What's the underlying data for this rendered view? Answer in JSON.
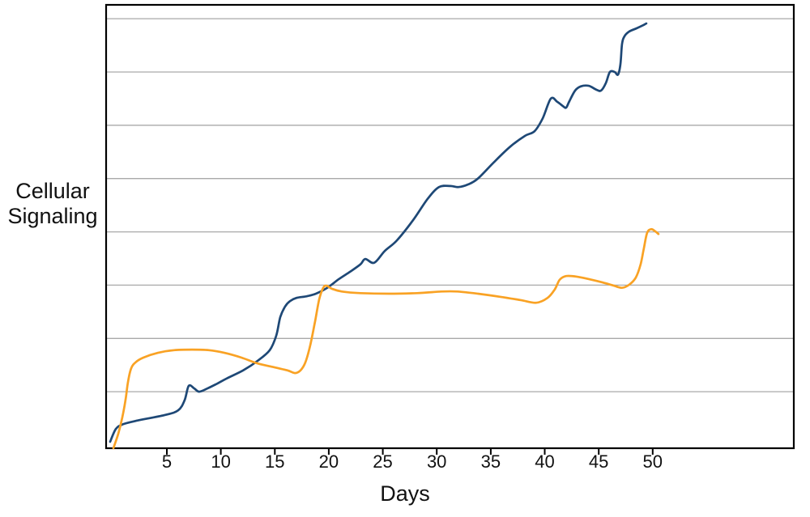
{
  "labels": {
    "ylabel_line1": "Cellular",
    "ylabel_line2": "Signaling",
    "xlabel": "Days"
  },
  "chart_data": {
    "type": "line",
    "title": "",
    "xlabel": "Days",
    "ylabel": "Cellular Signaling",
    "legend": "none",
    "background_color": "#ffffff",
    "frame_color": "#000000",
    "x_axis": {
      "label": "Days",
      "ticks": [
        5,
        10,
        15,
        20,
        25,
        30,
        35,
        40,
        45,
        50
      ],
      "range": [
        -0.6,
        63.1
      ]
    },
    "y_axis": {
      "label": "Cellular Signaling",
      "tick_labels_visible": false,
      "gridline_values": [
        1,
        2,
        3,
        4,
        5,
        6,
        7,
        8
      ],
      "gridline_color": "#a9a9a9",
      "range_units": [
        -0.06,
        8.32
      ],
      "note": "no numeric y scale shown; values estimated in gridline units above baseline"
    },
    "series": [
      {
        "id": "dark-blue-line",
        "color": "#1E4876",
        "points": [
          [
            -0.25,
            0.06
          ],
          [
            0.28,
            0.3
          ],
          [
            0.95,
            0.39
          ],
          [
            2.3,
            0.46
          ],
          [
            4.78,
            0.56
          ],
          [
            6.05,
            0.65
          ],
          [
            6.65,
            0.84
          ],
          [
            7.03,
            1.11
          ],
          [
            7.55,
            1.06
          ],
          [
            8.0,
            1.0
          ],
          [
            8.75,
            1.06
          ],
          [
            9.65,
            1.15
          ],
          [
            10.56,
            1.25
          ],
          [
            12.06,
            1.4
          ],
          [
            13.41,
            1.58
          ],
          [
            14.53,
            1.78
          ],
          [
            15.13,
            2.05
          ],
          [
            15.51,
            2.4
          ],
          [
            15.96,
            2.6
          ],
          [
            16.41,
            2.7
          ],
          [
            17.01,
            2.76
          ],
          [
            17.91,
            2.79
          ],
          [
            18.81,
            2.84
          ],
          [
            19.86,
            2.95
          ],
          [
            20.91,
            3.11
          ],
          [
            21.96,
            3.25
          ],
          [
            22.93,
            3.39
          ],
          [
            23.38,
            3.49
          ],
          [
            24.21,
            3.42
          ],
          [
            25.18,
            3.64
          ],
          [
            26.31,
            3.84
          ],
          [
            27.81,
            4.22
          ],
          [
            29.16,
            4.62
          ],
          [
            30.21,
            4.84
          ],
          [
            31.26,
            4.86
          ],
          [
            32.01,
            4.84
          ],
          [
            32.91,
            4.89
          ],
          [
            33.81,
            5.0
          ],
          [
            35.31,
            5.31
          ],
          [
            36.81,
            5.6
          ],
          [
            38.16,
            5.8
          ],
          [
            39.06,
            5.89
          ],
          [
            39.81,
            6.13
          ],
          [
            40.56,
            6.5
          ],
          [
            41.16,
            6.44
          ],
          [
            41.68,
            6.36
          ],
          [
            41.98,
            6.33
          ],
          [
            42.28,
            6.45
          ],
          [
            42.81,
            6.65
          ],
          [
            43.33,
            6.73
          ],
          [
            44.08,
            6.74
          ],
          [
            44.76,
            6.67
          ],
          [
            45.21,
            6.65
          ],
          [
            45.66,
            6.79
          ],
          [
            46.03,
            7.0
          ],
          [
            46.48,
            7.0
          ],
          [
            46.78,
            6.95
          ],
          [
            47.01,
            7.14
          ],
          [
            47.16,
            7.52
          ],
          [
            47.38,
            7.67
          ],
          [
            47.83,
            7.76
          ],
          [
            48.51,
            7.82
          ],
          [
            49.03,
            7.87
          ],
          [
            49.41,
            7.91
          ]
        ]
      },
      {
        "id": "orange-line",
        "color": "#F9A224",
        "points": [
          [
            0.05,
            -0.06
          ],
          [
            0.5,
            0.21
          ],
          [
            0.88,
            0.52
          ],
          [
            1.18,
            0.85
          ],
          [
            1.4,
            1.18
          ],
          [
            1.7,
            1.44
          ],
          [
            2.15,
            1.56
          ],
          [
            2.83,
            1.64
          ],
          [
            4.18,
            1.73
          ],
          [
            5.68,
            1.78
          ],
          [
            7.33,
            1.79
          ],
          [
            8.9,
            1.78
          ],
          [
            10.33,
            1.73
          ],
          [
            11.91,
            1.64
          ],
          [
            13.41,
            1.53
          ],
          [
            14.91,
            1.46
          ],
          [
            16.18,
            1.4
          ],
          [
            16.86,
            1.35
          ],
          [
            17.38,
            1.4
          ],
          [
            17.83,
            1.55
          ],
          [
            18.28,
            1.87
          ],
          [
            18.73,
            2.32
          ],
          [
            19.11,
            2.73
          ],
          [
            19.48,
            2.95
          ],
          [
            19.78,
            2.99
          ],
          [
            20.31,
            2.93
          ],
          [
            21.21,
            2.88
          ],
          [
            22.93,
            2.85
          ],
          [
            25.56,
            2.84
          ],
          [
            28.18,
            2.85
          ],
          [
            30.43,
            2.88
          ],
          [
            31.93,
            2.88
          ],
          [
            33.81,
            2.84
          ],
          [
            35.91,
            2.78
          ],
          [
            37.78,
            2.72
          ],
          [
            39.21,
            2.67
          ],
          [
            40.26,
            2.76
          ],
          [
            40.93,
            2.92
          ],
          [
            41.38,
            3.1
          ],
          [
            41.98,
            3.17
          ],
          [
            42.96,
            3.16
          ],
          [
            44.16,
            3.11
          ],
          [
            45.36,
            3.05
          ],
          [
            46.41,
            2.99
          ],
          [
            47.16,
            2.95
          ],
          [
            47.83,
            3.01
          ],
          [
            48.43,
            3.14
          ],
          [
            48.88,
            3.39
          ],
          [
            49.18,
            3.69
          ],
          [
            49.48,
            3.98
          ],
          [
            49.86,
            4.05
          ],
          [
            50.23,
            4.01
          ],
          [
            50.53,
            3.96
          ]
        ]
      }
    ]
  }
}
